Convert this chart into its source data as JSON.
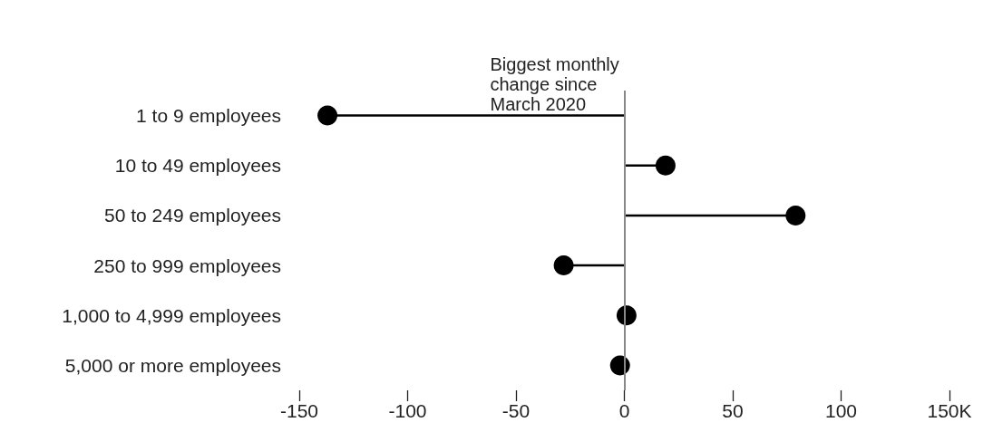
{
  "chart_data": {
    "type": "lollipop",
    "orientation": "horizontal",
    "marker": "circle",
    "categories": [
      "1 to 9 employees",
      "10 to 49 employees",
      "50 to 249 employees",
      "250 to 999 employees",
      "1,000 to 4,999 employees",
      "5,000 or more employees"
    ],
    "values": [
      -137,
      19,
      79,
      -28,
      1,
      -2
    ],
    "color": "#000000",
    "xlim": [
      -150,
      150
    ],
    "xticks": [
      -150,
      -100,
      -50,
      0,
      50,
      100,
      {
        "value": 150,
        "label": "150K"
      }
    ],
    "ref_lines": [
      {
        "axis": "x",
        "value": 0,
        "label": "Biggest monthly change since March 2020",
        "color": "#888888"
      }
    ]
  }
}
